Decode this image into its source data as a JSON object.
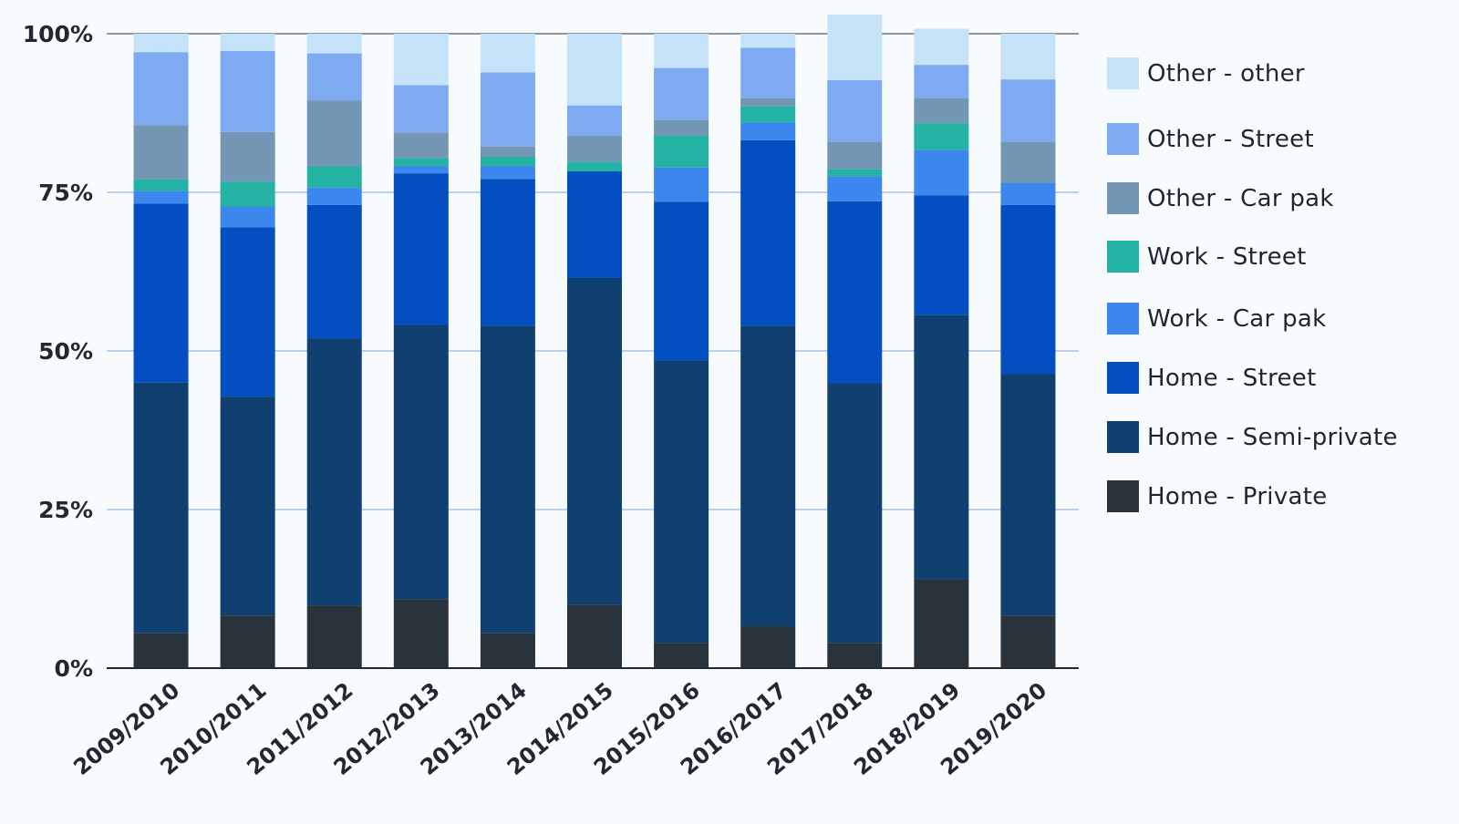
{
  "chart_data": {
    "type": "bar",
    "stacked": true,
    "categories": [
      "2009/2010",
      "2010/2011",
      "2011/2012",
      "2012/2013",
      "2013/2014",
      "2014/2015",
      "2015/2016",
      "2016/2017",
      "2017/2018",
      "2018/2019",
      "2019/2020"
    ],
    "y_ticks": [
      "0%",
      "25%",
      "50%",
      "75%",
      "100%"
    ],
    "ylim": [
      0,
      100
    ],
    "grid": true,
    "legend_position": "right",
    "series": [
      {
        "name": "Home - Private",
        "color": "#28333b",
        "values": [
          5.5,
          8.3,
          9.9,
          10.9,
          5.5,
          10.0,
          4.0,
          6.6,
          4.0,
          14.0,
          8.3
        ]
      },
      {
        "name": "Home - Semi-private",
        "color": "#10406f",
        "values": [
          39.5,
          34.5,
          42.1,
          43.2,
          48.5,
          51.5,
          44.5,
          47.4,
          40.9,
          41.7,
          38.1
        ]
      },
      {
        "name": "Home - Street",
        "color": "#034ec1",
        "values": [
          28.2,
          26.7,
          21.0,
          23.9,
          23.1,
          16.8,
          25.0,
          29.2,
          28.7,
          18.8,
          26.6
        ]
      },
      {
        "name": "Work - Car pak",
        "color": "#3b87ed",
        "values": [
          2.0,
          3.2,
          2.7,
          1.1,
          2.0,
          0.0,
          5.4,
          2.8,
          3.9,
          7.2,
          3.5
        ]
      },
      {
        "name": "Work - Street",
        "color": "#24b2a4",
        "values": [
          1.9,
          4.0,
          3.4,
          1.3,
          1.5,
          1.5,
          5.0,
          2.6,
          1.2,
          4.2,
          0.0
        ]
      },
      {
        "name": "Other - Car pak",
        "color": "#7496b5",
        "values": [
          8.5,
          7.8,
          10.4,
          4.0,
          1.6,
          4.1,
          2.5,
          1.2,
          4.3,
          4.0,
          6.5
        ]
      },
      {
        "name": "Other - Street",
        "color": "#7eaaf1",
        "values": [
          11.5,
          12.8,
          7.4,
          7.5,
          11.7,
          4.8,
          8.2,
          8.0,
          9.7,
          5.2,
          9.8
        ]
      },
      {
        "name": "Other - other",
        "color": "#c5e3f8",
        "values": [
          2.9,
          2.7,
          3.1,
          8.1,
          6.1,
          11.3,
          5.4,
          2.2,
          10.3,
          5.7,
          7.2
        ]
      }
    ]
  }
}
